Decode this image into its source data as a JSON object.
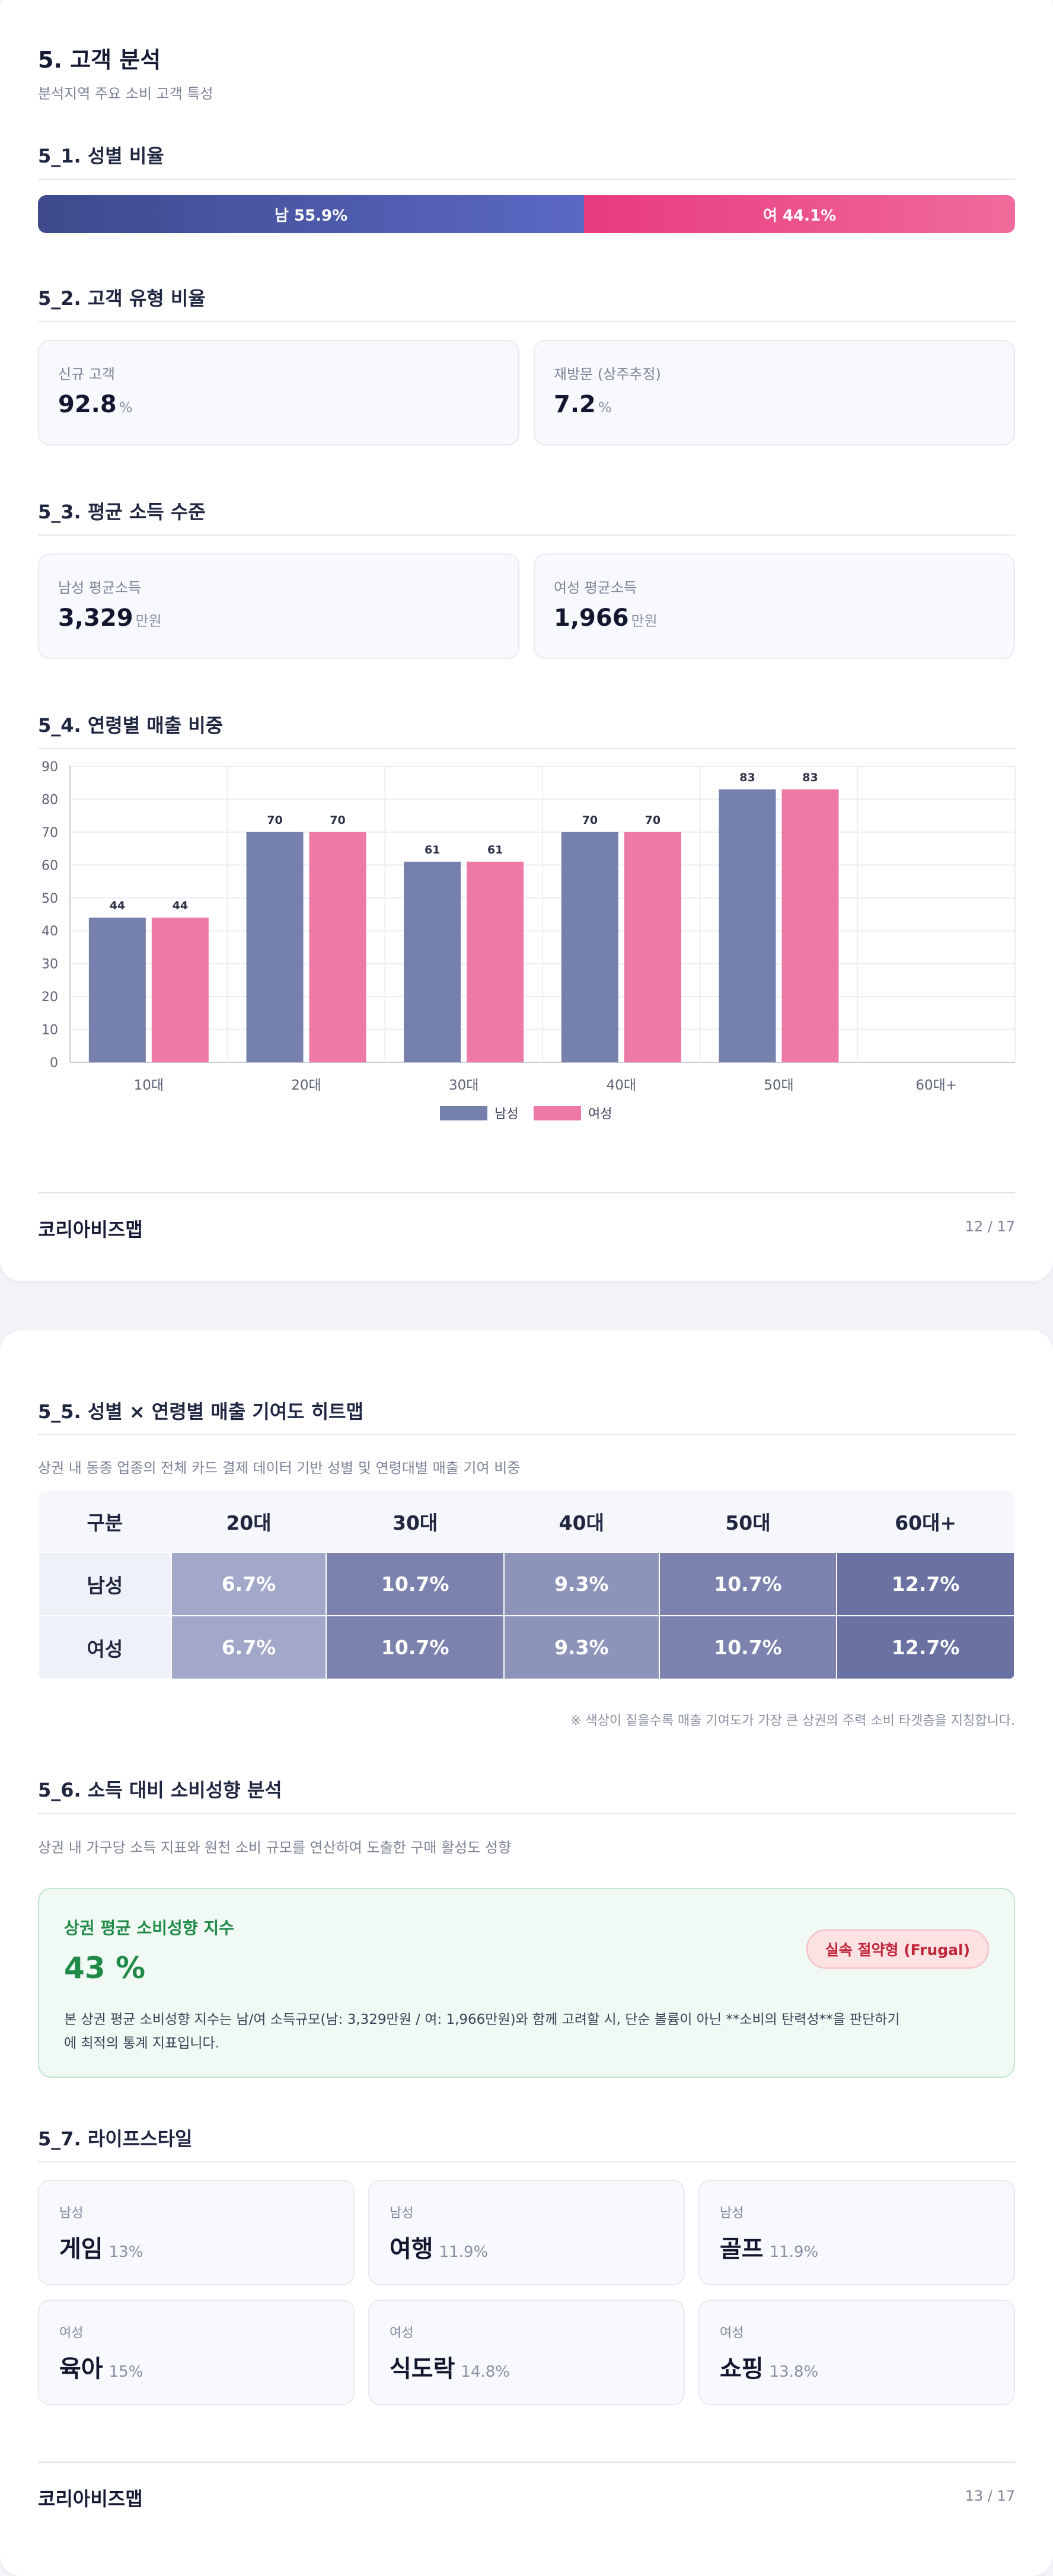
{
  "page1": {
    "title": "5. 고객 분석",
    "subtitle": "분석지역 주요 소비 고객 특성",
    "gender": {
      "heading": "5_1. 성별 비율",
      "male_label": "남 55.9%",
      "female_label": "여 44.1%",
      "male_pct": 55.9,
      "female_pct": 44.1
    },
    "customer_type": {
      "heading": "5_2. 고객 유형 비율",
      "new": {
        "label": "신규 고객",
        "value": "92.8",
        "unit": "%"
      },
      "revisit": {
        "label": "재방문 (상주추정)",
        "value": "7.2",
        "unit": "%"
      }
    },
    "income": {
      "heading": "5_3. 평균 소득 수준",
      "male": {
        "label": "남성 평균소득",
        "value": "3,329",
        "unit": "만원"
      },
      "female": {
        "label": "여성 평균소득",
        "value": "1,966",
        "unit": "만원"
      }
    },
    "age_heading": "5_4. 연령별 매출 비중",
    "footer": {
      "brand": "코리아비즈맵",
      "page": "12 / 17"
    }
  },
  "chart_data": {
    "type": "bar",
    "categories": [
      "10대",
      "20대",
      "30대",
      "40대",
      "50대",
      "60대+"
    ],
    "series": [
      {
        "name": "남성",
        "values": [
          44,
          70,
          61,
          70,
          83,
          null
        ],
        "color": "#7680ad"
      },
      {
        "name": "여성",
        "values": [
          44,
          70,
          61,
          70,
          83,
          null
        ],
        "color": "#ee78a6"
      }
    ],
    "ylim": [
      0,
      90
    ],
    "yticks": [
      0,
      10,
      20,
      30,
      40,
      50,
      60,
      70,
      80,
      90
    ],
    "grid": true,
    "legend": "bottom-center"
  },
  "page2": {
    "heatmap": {
      "heading": "5_5. 성별 × 연령별 매출 기여도 히트맵",
      "desc": "상권 내 동종 업종의 전체 카드 결제 데이터 기반 성별 및 연령대별 매출 기여 비중",
      "columns": [
        "구분",
        "20대",
        "30대",
        "40대",
        "50대",
        "60대+"
      ],
      "rows": [
        {
          "label": "남성",
          "cells": [
            "6.7%",
            "10.7%",
            "9.3%",
            "10.7%",
            "12.7%"
          ]
        },
        {
          "label": "여성",
          "cells": [
            "6.7%",
            "10.7%",
            "9.3%",
            "10.7%",
            "12.7%"
          ]
        }
      ],
      "cell_colors": [
        "#a2a8c9",
        "#7b82ae",
        "#8d94ba",
        "#7b82ae",
        "#6a72a3"
      ],
      "note": "※ 색상이 짙을수록 매출 기여도가 가장 큰 상권의 주력 소비 타겟층을 지칭합니다."
    },
    "spending": {
      "heading": "5_6. 소득 대비 소비성향 분석",
      "desc": "상권 내 가구당 소득 지표와 원천 소비 규모를 연산하여 도출한 구매 활성도 성향",
      "card_title": "상권 평균 소비성향 지수",
      "value": "43 %",
      "badge": "실속 절약형 (Frugal)",
      "text_line1": "본 상권 평균 소비성향 지수는 남/여 소득규모(남: 3,329만원 / 여: 1,966만원)와 함께 고려할 시, 단순 볼륨이 아닌 **소비의 탄력성**을 판단하기",
      "text_line2": "에 최적의 통계 지표입니다."
    },
    "lifestyle": {
      "heading": "5_7. 라이프스타일",
      "items": [
        {
          "gender": "남성",
          "name": "게임",
          "pct": "13%"
        },
        {
          "gender": "남성",
          "name": "여행",
          "pct": "11.9%"
        },
        {
          "gender": "남성",
          "name": "골프",
          "pct": "11.9%"
        },
        {
          "gender": "여성",
          "name": "육아",
          "pct": "15%"
        },
        {
          "gender": "여성",
          "name": "식도락",
          "pct": "14.8%"
        },
        {
          "gender": "여성",
          "name": "쇼핑",
          "pct": "13.8%"
        }
      ]
    },
    "footer": {
      "brand": "코리아비즈맵",
      "page": "13 / 17"
    }
  }
}
